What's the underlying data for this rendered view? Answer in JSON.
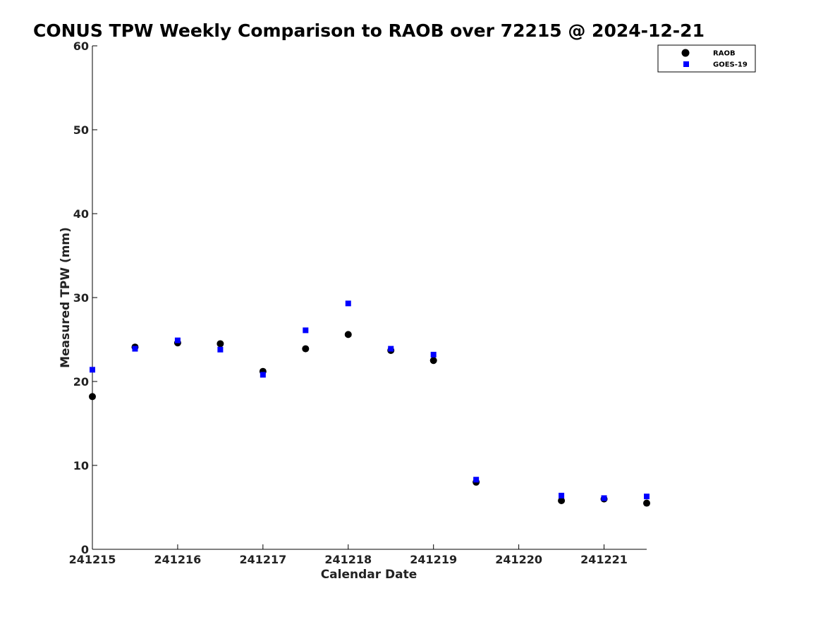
{
  "chart_data": {
    "type": "scatter",
    "title": "CONUS TPW Weekly Comparison to RAOB over 72215 @ 2024-12-21",
    "xlabel": "Calendar Date",
    "ylabel": "Measured TPW (mm)",
    "xlim": [
      0,
      6.5
    ],
    "ylim": [
      0,
      60
    ],
    "x_ticks": [
      0,
      1,
      2,
      3,
      4,
      5,
      6
    ],
    "x_tick_labels": [
      "241215",
      "241216",
      "241217",
      "241218",
      "241219",
      "241220",
      "241221"
    ],
    "y_ticks": [
      0,
      10,
      20,
      30,
      40,
      50,
      60
    ],
    "y_tick_labels": [
      "0",
      "10",
      "20",
      "30",
      "40",
      "50",
      "60"
    ],
    "grid": false,
    "legend_position": "top-right",
    "series": [
      {
        "name": "RAOB",
        "marker": "circle",
        "color": "#000000",
        "x": [
          0,
          0.5,
          1,
          1.5,
          2,
          2.5,
          3,
          3.5,
          4,
          4.5,
          5.5,
          6,
          6.5
        ],
        "y": [
          18.2,
          24.1,
          24.6,
          24.5,
          21.2,
          23.9,
          25.6,
          23.7,
          22.5,
          8.0,
          5.8,
          6.0,
          5.5
        ]
      },
      {
        "name": "GOES-19",
        "marker": "square",
        "color": "#0000ff",
        "x": [
          0,
          0.5,
          1,
          1.5,
          2,
          2.5,
          3,
          3.5,
          4,
          4.5,
          5.5,
          6,
          6.5
        ],
        "y": [
          21.4,
          23.9,
          24.9,
          23.8,
          20.8,
          26.1,
          29.3,
          23.9,
          23.2,
          8.3,
          6.4,
          6.1,
          6.3
        ]
      }
    ]
  }
}
